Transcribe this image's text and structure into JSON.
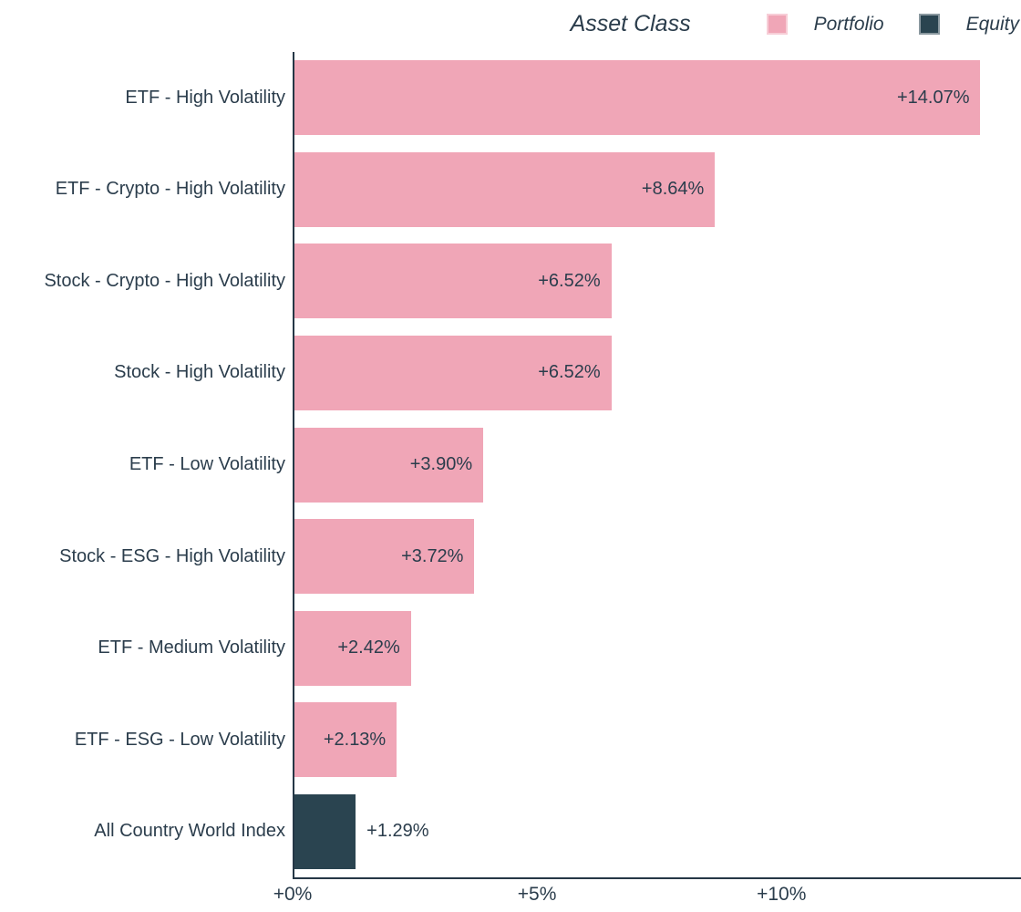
{
  "legend": {
    "title": "Asset Class",
    "items": [
      {
        "label": "Portfolio",
        "series": "Portfolio",
        "color": "#f0a6b7"
      },
      {
        "label": "Equity",
        "series": "Equity",
        "color": "#2a4450"
      }
    ]
  },
  "colors": {
    "Portfolio": "#f0a6b7",
    "Equity": "#2a4450",
    "axis": "#253746",
    "text": "#2b3d4c"
  },
  "chart_data": {
    "type": "bar",
    "orientation": "horizontal",
    "legend_title": "Asset Class",
    "grid": "off",
    "legend_position": "top-right",
    "xlim": [
      0,
      14.9
    ],
    "ticks": [
      {
        "value": 0,
        "label": "+0%"
      },
      {
        "value": 5,
        "label": "+5%"
      },
      {
        "value": 10,
        "label": "+10%"
      }
    ],
    "rows": [
      {
        "category": "ETF - High Volatility",
        "value": 14.07,
        "label": "+14.07%",
        "series": "Portfolio",
        "label_position": "inside"
      },
      {
        "category": "ETF - Crypto - High Volatility",
        "value": 8.64,
        "label": "+8.64%",
        "series": "Portfolio",
        "label_position": "inside"
      },
      {
        "category": "Stock - Crypto - High Volatility",
        "value": 6.52,
        "label": "+6.52%",
        "series": "Portfolio",
        "label_position": "inside"
      },
      {
        "category": "Stock - High Volatility",
        "value": 6.52,
        "label": "+6.52%",
        "series": "Portfolio",
        "label_position": "inside"
      },
      {
        "category": "ETF - Low Volatility",
        "value": 3.9,
        "label": "+3.90%",
        "series": "Portfolio",
        "label_position": "inside"
      },
      {
        "category": "Stock - ESG - High Volatility",
        "value": 3.72,
        "label": "+3.72%",
        "series": "Portfolio",
        "label_position": "inside"
      },
      {
        "category": "ETF - Medium Volatility",
        "value": 2.42,
        "label": "+2.42%",
        "series": "Portfolio",
        "label_position": "inside"
      },
      {
        "category": "ETF - ESG - Low Volatility",
        "value": 2.13,
        "label": "+2.13%",
        "series": "Portfolio",
        "label_position": "inside"
      },
      {
        "category": "All Country World Index",
        "value": 1.29,
        "label": "+1.29%",
        "series": "Equity",
        "label_position": "outside"
      }
    ]
  }
}
